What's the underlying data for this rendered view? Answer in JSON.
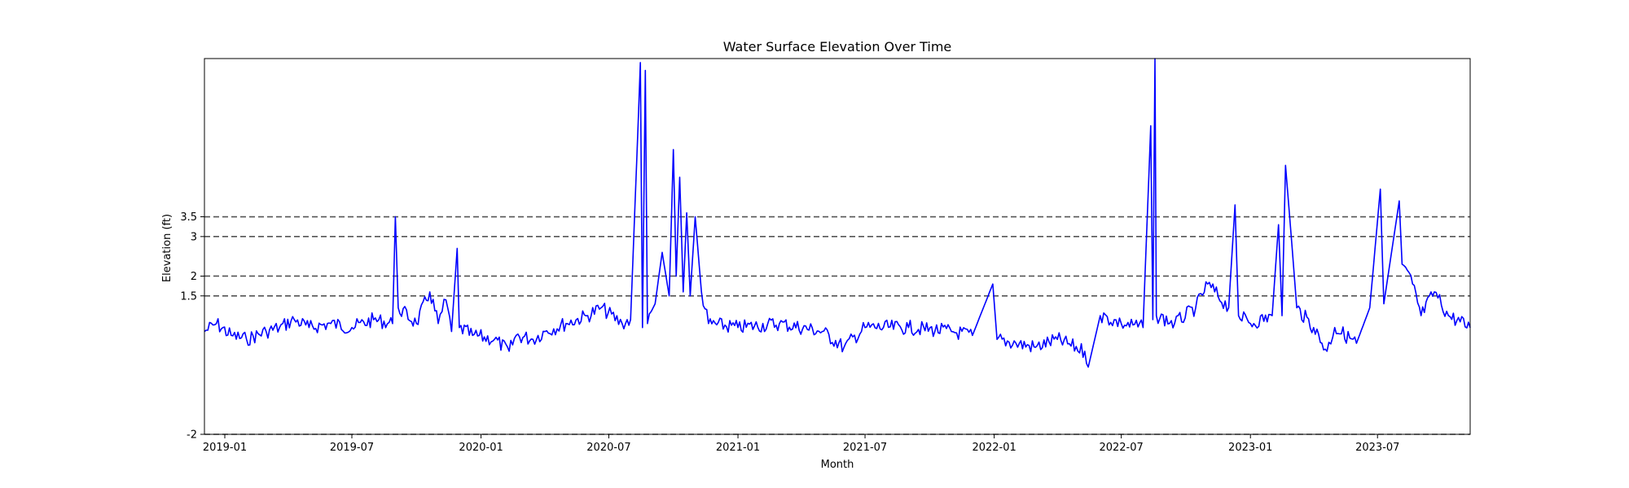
{
  "chart_data": {
    "type": "line",
    "title": "Water Surface Elevation Over Time",
    "xlabel": "Month",
    "ylabel": "Elevation (ft)",
    "xlim": [
      "2018-12-03",
      "2023-11-10"
    ],
    "ylim": [
      -2,
      7.5
    ],
    "x_ticks": [
      "2019-01",
      "2019-07",
      "2020-01",
      "2020-07",
      "2021-01",
      "2021-07",
      "2022-01",
      "2022-07",
      "2023-01",
      "2023-07"
    ],
    "y_ticks": [
      -2,
      1.5,
      2,
      3,
      3.5
    ],
    "reference_lines": [
      -2,
      1.5,
      2,
      3,
      3.5
    ],
    "grid": false,
    "legend": "none",
    "series_color": "#0000ff",
    "reference_line_color": "#555555",
    "series": [
      {
        "values": [
          [
            "2018-12-03",
            0.6
          ],
          [
            "2018-12-20",
            0.8
          ],
          [
            "2019-01-10",
            0.5
          ],
          [
            "2019-02-01",
            0.4
          ],
          [
            "2019-03-01",
            0.6
          ],
          [
            "2019-03-20",
            0.7
          ],
          [
            "2019-04-10",
            0.9
          ],
          [
            "2019-05-01",
            0.7
          ],
          [
            "2019-06-01",
            0.8
          ],
          [
            "2019-07-01",
            0.7
          ],
          [
            "2019-08-01",
            0.9
          ],
          [
            "2019-08-28",
            0.8
          ],
          [
            "2019-09-01",
            3.5
          ],
          [
            "2019-09-05",
            1.2
          ],
          [
            "2019-10-01",
            0.8
          ],
          [
            "2019-10-20",
            1.6
          ],
          [
            "2019-11-01",
            0.8
          ],
          [
            "2019-11-12",
            1.4
          ],
          [
            "2019-11-20",
            0.6
          ],
          [
            "2019-11-28",
            2.7
          ],
          [
            "2019-12-01",
            0.7
          ],
          [
            "2019-12-20",
            0.5
          ],
          [
            "2020-01-20",
            0.4
          ],
          [
            "2020-02-10",
            0.1
          ],
          [
            "2020-02-20",
            0.5
          ],
          [
            "2020-03-15",
            0.4
          ],
          [
            "2020-04-01",
            0.6
          ],
          [
            "2020-05-01",
            0.8
          ],
          [
            "2020-06-01",
            1.0
          ],
          [
            "2020-06-20",
            1.2
          ],
          [
            "2020-07-20",
            0.8
          ],
          [
            "2020-08-01",
            0.9
          ],
          [
            "2020-08-10",
            5.0
          ],
          [
            "2020-08-15",
            7.4
          ],
          [
            "2020-08-18",
            0.7
          ],
          [
            "2020-08-22",
            7.2
          ],
          [
            "2020-08-25",
            0.8
          ],
          [
            "2020-09-05",
            1.3
          ],
          [
            "2020-09-15",
            2.6
          ],
          [
            "2020-09-25",
            1.5
          ],
          [
            "2020-10-01",
            5.2
          ],
          [
            "2020-10-05",
            2.0
          ],
          [
            "2020-10-10",
            4.5
          ],
          [
            "2020-10-15",
            1.6
          ],
          [
            "2020-10-20",
            3.6
          ],
          [
            "2020-10-25",
            1.5
          ],
          [
            "2020-11-01",
            3.5
          ],
          [
            "2020-11-10",
            1.6
          ],
          [
            "2020-11-20",
            0.8
          ],
          [
            "2021-01-01",
            0.7
          ],
          [
            "2021-03-01",
            0.8
          ],
          [
            "2021-05-01",
            0.6
          ],
          [
            "2021-06-01",
            0.2
          ],
          [
            "2021-07-01",
            0.7
          ],
          [
            "2021-09-01",
            0.7
          ],
          [
            "2021-11-01",
            0.6
          ],
          [
            "2021-12-01",
            0.5
          ],
          [
            "2021-12-30",
            1.8
          ],
          [
            "2022-01-05",
            0.4
          ],
          [
            "2022-02-01",
            0.3
          ],
          [
            "2022-03-01",
            0.2
          ],
          [
            "2022-04-01",
            0.4
          ],
          [
            "2022-05-10",
            0.1
          ],
          [
            "2022-05-15",
            -0.3
          ],
          [
            "2022-06-01",
            1.0
          ],
          [
            "2022-07-01",
            0.8
          ],
          [
            "2022-08-01",
            0.7
          ],
          [
            "2022-08-12",
            5.8
          ],
          [
            "2022-08-15",
            0.9
          ],
          [
            "2022-08-18",
            7.5
          ],
          [
            "2022-08-20",
            1.0
          ],
          [
            "2022-09-15",
            0.8
          ],
          [
            "2022-10-15",
            1.2
          ],
          [
            "2022-11-01",
            1.8
          ],
          [
            "2022-12-01",
            1.2
          ],
          [
            "2022-12-10",
            3.8
          ],
          [
            "2022-12-15",
            1.0
          ],
          [
            "2023-01-01",
            0.8
          ],
          [
            "2023-02-01",
            1.0
          ],
          [
            "2023-02-10",
            3.3
          ],
          [
            "2023-02-15",
            1.0
          ],
          [
            "2023-02-20",
            4.8
          ],
          [
            "2023-03-01",
            2.8
          ],
          [
            "2023-03-08",
            1.2
          ],
          [
            "2023-04-01",
            0.7
          ],
          [
            "2023-04-20",
            0.1
          ],
          [
            "2023-05-01",
            0.7
          ],
          [
            "2023-06-01",
            0.3
          ],
          [
            "2023-06-20",
            1.2
          ],
          [
            "2023-07-05",
            4.2
          ],
          [
            "2023-07-10",
            1.3
          ],
          [
            "2023-08-01",
            3.9
          ],
          [
            "2023-08-05",
            2.3
          ],
          [
            "2023-08-20",
            1.8
          ],
          [
            "2023-09-01",
            1.0
          ],
          [
            "2023-09-20",
            1.6
          ],
          [
            "2023-10-10",
            1.0
          ],
          [
            "2023-11-10",
            0.7
          ]
        ]
      }
    ]
  }
}
